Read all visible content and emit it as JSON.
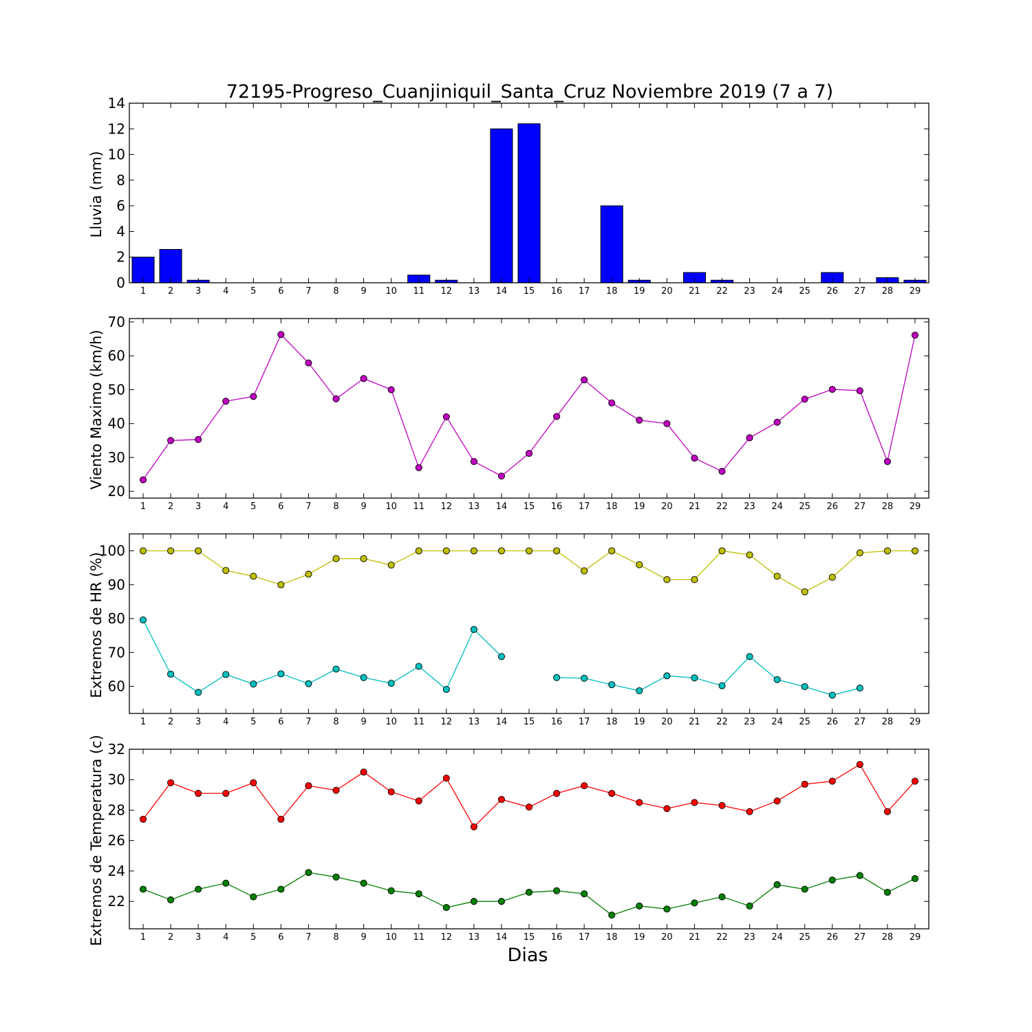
{
  "title": "72195-Progreso_Cuanjiniquil_Santa_Cruz Noviembre 2019  (7 a 7)",
  "chart_data": [
    {
      "type": "bar",
      "ylabel": "Lluvia (mm)",
      "ylim": [
        0,
        14
      ],
      "yticks": [
        0,
        2,
        4,
        6,
        8,
        10,
        12,
        14
      ],
      "color": "#0000ff",
      "x": [
        1,
        2,
        3,
        4,
        5,
        6,
        7,
        8,
        9,
        10,
        11,
        12,
        13,
        14,
        15,
        16,
        17,
        18,
        19,
        20,
        21,
        22,
        23,
        24,
        25,
        26,
        27,
        28,
        29
      ],
      "values": [
        2.0,
        2.6,
        0.2,
        0,
        0,
        0,
        0,
        0,
        0,
        0,
        0.6,
        0.2,
        0,
        12.0,
        12.4,
        0,
        0,
        6.0,
        0.2,
        0,
        0.8,
        0.2,
        0,
        0,
        0,
        0.8,
        0,
        0.4,
        0.2
      ]
    },
    {
      "type": "line",
      "ylabel": "Viento Maximo (km/h)",
      "ylim": [
        18,
        71
      ],
      "yticks": [
        20,
        30,
        40,
        50,
        60,
        70
      ],
      "x": [
        1,
        2,
        3,
        4,
        5,
        6,
        7,
        8,
        9,
        10,
        11,
        12,
        13,
        14,
        15,
        16,
        17,
        18,
        19,
        20,
        21,
        22,
        23,
        24,
        25,
        26,
        27,
        28,
        29
      ],
      "series": [
        {
          "color": "#bf00bf",
          "values": [
            23.4,
            35.0,
            35.3,
            46.6,
            48.0,
            66.3,
            57.9,
            47.3,
            53.3,
            50.0,
            27.0,
            42.0,
            28.8,
            24.5,
            31.2,
            42.1,
            52.9,
            46.1,
            41.0,
            40.0,
            29.8,
            25.9,
            35.8,
            40.4,
            47.2,
            50.1,
            49.7,
            28.8,
            66.1
          ]
        }
      ]
    },
    {
      "type": "line",
      "ylabel": "Extremos de HR (%)",
      "ylim": [
        52,
        105
      ],
      "yticks": [
        60,
        70,
        80,
        90,
        100
      ],
      "x": [
        1,
        2,
        3,
        4,
        5,
        6,
        7,
        8,
        9,
        10,
        11,
        12,
        13,
        14,
        15,
        16,
        17,
        18,
        19,
        20,
        21,
        22,
        23,
        24,
        25,
        26,
        27,
        28,
        29
      ],
      "series": [
        {
          "color": "#bfbf00",
          "values": [
            100,
            100,
            100,
            94.2,
            92.5,
            90.0,
            93.1,
            97.7,
            97.7,
            95.8,
            100,
            100,
            100,
            100,
            100,
            100,
            94.1,
            100,
            95.9,
            91.5,
            91.5,
            100,
            98.8,
            92.5,
            87.9,
            92.2,
            99.4,
            100,
            100
          ]
        },
        {
          "color": "#00bfbf",
          "values": [
            79.6,
            63.6,
            58.2,
            63.5,
            60.7,
            63.7,
            60.8,
            65.1,
            62.6,
            60.9,
            65.9,
            59.1,
            76.8,
            68.8,
            null,
            62.6,
            62.4,
            60.5,
            58.7,
            63.1,
            62.5,
            60.2,
            68.8,
            62.0,
            59.9,
            57.4,
            59.5,
            null,
            null
          ]
        }
      ]
    },
    {
      "type": "line",
      "ylabel": "Extremos de Temperatura (c)",
      "xlabel": "Dias",
      "ylim": [
        20.2,
        32
      ],
      "yticks": [
        22,
        24,
        26,
        28,
        30,
        32
      ],
      "x": [
        1,
        2,
        3,
        4,
        5,
        6,
        7,
        8,
        9,
        10,
        11,
        12,
        13,
        14,
        15,
        16,
        17,
        18,
        19,
        20,
        21,
        22,
        23,
        24,
        25,
        26,
        27,
        28,
        29
      ],
      "series": [
        {
          "color": "#ff0000",
          "values": [
            27.4,
            29.8,
            29.1,
            29.1,
            29.8,
            27.4,
            29.6,
            29.3,
            30.5,
            29.2,
            28.6,
            30.1,
            26.9,
            28.7,
            28.2,
            29.1,
            29.6,
            29.1,
            28.5,
            28.1,
            28.5,
            28.3,
            27.9,
            28.6,
            29.7,
            29.9,
            31.0,
            27.9,
            29.9
          ]
        },
        {
          "color": "#007f00",
          "values": [
            22.8,
            22.1,
            22.8,
            23.2,
            22.3,
            22.8,
            23.9,
            23.6,
            23.2,
            22.7,
            22.5,
            21.6,
            22.0,
            22.0,
            22.6,
            22.7,
            22.5,
            21.1,
            21.7,
            21.5,
            21.9,
            22.3,
            21.7,
            23.1,
            22.8,
            23.4,
            23.7,
            22.6,
            23.5
          ]
        }
      ]
    }
  ]
}
